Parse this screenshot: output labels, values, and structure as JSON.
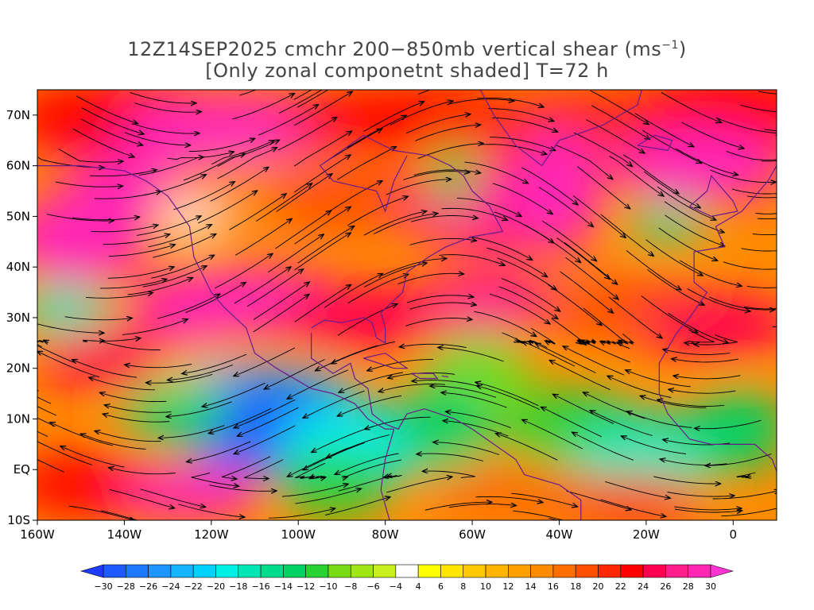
{
  "title": {
    "line1_main": "12Z14SEP2025 cmchr 200−850mb vertical shear (ms",
    "line1_sup": "−1",
    "line1_end": ")",
    "line2": "[Only zonal componetnt shaded] T=72 h"
  },
  "map": {
    "lon_range": [
      -160,
      10
    ],
    "lat_range": [
      -10,
      75
    ],
    "lat_labels": [
      {
        "lat": 70,
        "text": "70N"
      },
      {
        "lat": 60,
        "text": "60N"
      },
      {
        "lat": 50,
        "text": "50N"
      },
      {
        "lat": 40,
        "text": "40N"
      },
      {
        "lat": 30,
        "text": "30N"
      },
      {
        "lat": 20,
        "text": "20N"
      },
      {
        "lat": 10,
        "text": "10N"
      },
      {
        "lat": 0,
        "text": "EQ"
      },
      {
        "lat": -10,
        "text": "10S"
      }
    ],
    "lon_labels": [
      {
        "lon": -160,
        "text": "160W"
      },
      {
        "lon": -140,
        "text": "140W"
      },
      {
        "lon": -120,
        "text": "120W"
      },
      {
        "lon": -100,
        "text": "100W"
      },
      {
        "lon": -80,
        "text": "80W"
      },
      {
        "lon": -60,
        "text": "60W"
      },
      {
        "lon": -40,
        "text": "40W"
      },
      {
        "lon": -20,
        "text": "20W"
      },
      {
        "lon": 0,
        "text": "0"
      }
    ],
    "coastline_color": "#6a1a8a",
    "streamline_color": "#000000"
  },
  "colorbar": {
    "labels": [
      "−30",
      "−28",
      "−26",
      "−24",
      "−22",
      "−20",
      "−18",
      "−16",
      "−14",
      "−12",
      "−10",
      "−8",
      "−6",
      "−4",
      "4",
      "6",
      "8",
      "10",
      "12",
      "14",
      "16",
      "18",
      "20",
      "22",
      "24",
      "26",
      "28",
      "30"
    ],
    "colors": [
      "#1e3cff",
      "#1e5aff",
      "#1e78ff",
      "#1e96ff",
      "#14b4ff",
      "#00d2ff",
      "#00f0e6",
      "#00e6b4",
      "#00dc8c",
      "#00d264",
      "#28d232",
      "#78dc14",
      "#a0e614",
      "#c8f01e",
      "#ffffff",
      "#ffff00",
      "#ffe600",
      "#ffc800",
      "#ffb400",
      "#ffa000",
      "#ff8c00",
      "#ff6e00",
      "#ff5000",
      "#ff2800",
      "#ff0000",
      "#ff0050",
      "#ff1e8c",
      "#ff28b4",
      "#ff32d2"
    ]
  }
}
